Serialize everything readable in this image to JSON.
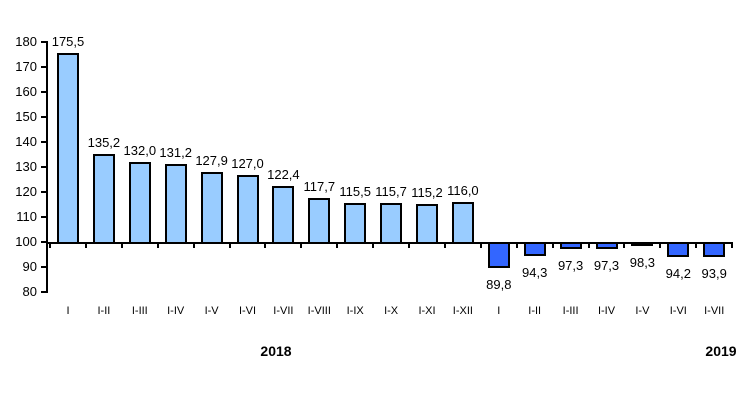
{
  "chart_data": {
    "type": "bar",
    "title": "",
    "xlabel": "",
    "ylabel": "",
    "baseline": 100,
    "ylim": [
      80,
      180
    ],
    "yticks": [
      "180",
      "170",
      "160",
      "150",
      "140",
      "130",
      "120",
      "110",
      "100",
      "90",
      "80"
    ],
    "ytick_values": [
      180,
      170,
      160,
      150,
      140,
      130,
      120,
      110,
      100,
      90,
      80
    ],
    "grid": "off",
    "legend": "none",
    "categories": [
      "I",
      "I-II",
      "I-III",
      "I-IV",
      "I-V",
      "I-VI",
      "I-VII",
      "I-VIII",
      "I-IX",
      "I-X",
      "I-XI",
      "I-XII",
      "I",
      "I-II",
      "I-III",
      "I-IV",
      "I-V",
      "I-VI",
      "I-VII"
    ],
    "series": [
      {
        "name": "2018",
        "color": "#99CCFF",
        "border_color": "#000000",
        "start_index": 0,
        "values": [
          175.5,
          135.2,
          132.0,
          131.2,
          127.9,
          127.0,
          122.4,
          117.7,
          115.5,
          115.7,
          115.2,
          116.0
        ],
        "labels": [
          "175,5",
          "135,2",
          "132,0",
          "131,2",
          "127,9",
          "127,0",
          "122,4",
          "117,7",
          "115,5",
          "115,7",
          "115,2",
          "116,0"
        ]
      },
      {
        "name": "2019",
        "color": "#3366FF",
        "border_color": "#000000",
        "start_index": 12,
        "values": [
          89.8,
          94.3,
          97.3,
          97.3,
          98.3,
          94.2,
          93.9
        ],
        "labels": [
          "89,8",
          "94,3",
          "97,3",
          "97,3",
          "98,3",
          "94,2",
          "93,9"
        ]
      }
    ],
    "group_labels": [
      {
        "text": "2018"
      },
      {
        "text": "2019"
      }
    ],
    "colors": {
      "axis": "#000000",
      "text": "#000000",
      "background": "#FFFFFF",
      "bar_2018": "#99CCFF",
      "bar_2019": "#3366FF"
    }
  }
}
